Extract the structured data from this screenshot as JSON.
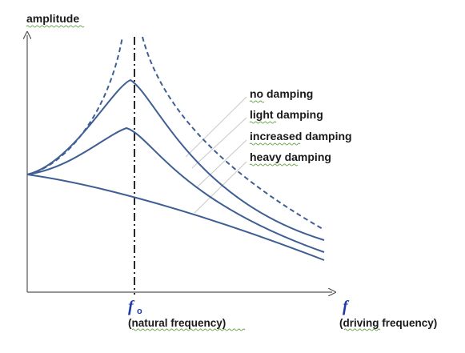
{
  "figure": {
    "y_axis_label": "amplitude",
    "natural_frequency": {
      "symbol": "f",
      "subscript": "o",
      "caption": "(natural frequency)"
    },
    "driving_frequency": {
      "symbol": "f",
      "caption": "(driving frequency)"
    },
    "curve_labels": [
      "no damping",
      "light damping",
      "increased damping",
      "heavy damping"
    ],
    "colors": {
      "curve": "#3f5f93",
      "axis": "#555555",
      "frequency_symbol": "#1f3aa8",
      "leader_lines": "#c8c8c8",
      "spell_underline": "#6aa84f"
    }
  }
}
